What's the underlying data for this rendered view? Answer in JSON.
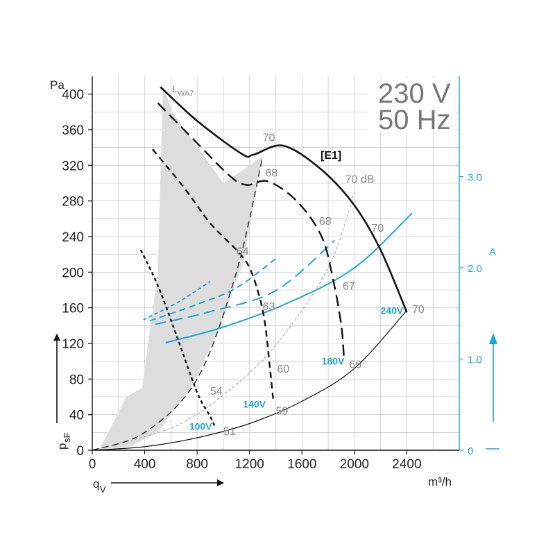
{
  "chart_data": {
    "type": "line",
    "supply_voltage": "230 V",
    "supply_frequency": "50 Hz",
    "model_tag": "[E1]",
    "xlabel": "q",
    "xlabel_sub": "V",
    "xunit": "m³/h",
    "ylabel": "p",
    "ylabel_sub": "sF",
    "yunit": "Pa",
    "y2unit": "A",
    "sound_label": "L",
    "sound_label_sub": "WA7",
    "xlim": [
      0,
      2800
    ],
    "ylim": [
      0,
      420
    ],
    "y2lim": [
      0,
      4.1
    ],
    "x_ticks": [
      "0",
      "400",
      "800",
      "1200",
      "1600",
      "2000",
      "2400"
    ],
    "y_ticks": [
      "0",
      "40",
      "80",
      "120",
      "160",
      "200",
      "240",
      "280",
      "320",
      "360",
      "400"
    ],
    "y2_ticks": [
      "0",
      "1.0",
      "2.0",
      "3.0"
    ],
    "colors": {
      "pressure": "#111111",
      "current": "#1aa7d8",
      "sound": "#888888",
      "shade": "#dddddd",
      "grid": "#bbbbbb"
    },
    "pressure_curves": [
      {
        "name": "240V",
        "dash": "solid",
        "points": [
          [
            520,
            408
          ],
          [
            800,
            370
          ],
          [
            1140,
            333
          ],
          [
            1230,
            332
          ],
          [
            1460,
            342
          ],
          [
            1750,
            315
          ],
          [
            2000,
            275
          ],
          [
            2200,
            225
          ],
          [
            2400,
            155
          ]
        ]
      },
      {
        "name": "180V",
        "dash": "long",
        "points": [
          [
            500,
            390
          ],
          [
            800,
            345
          ],
          [
            1050,
            308
          ],
          [
            1180,
            298
          ],
          [
            1340,
            302
          ],
          [
            1560,
            280
          ],
          [
            1750,
            240
          ],
          [
            1840,
            190
          ],
          [
            1900,
            140
          ],
          [
            1920,
            105
          ]
        ]
      },
      {
        "name": "140V",
        "dash": "medium",
        "points": [
          [
            460,
            338
          ],
          [
            700,
            295
          ],
          [
            900,
            255
          ],
          [
            1100,
            225
          ],
          [
            1200,
            205
          ],
          [
            1280,
            170
          ],
          [
            1320,
            140
          ],
          [
            1350,
            100
          ],
          [
            1380,
            58
          ]
        ]
      },
      {
        "name": "100V",
        "dash": "short",
        "points": [
          [
            370,
            225
          ],
          [
            500,
            185
          ],
          [
            640,
            130
          ],
          [
            800,
            65
          ],
          [
            900,
            38
          ],
          [
            940,
            25
          ]
        ]
      }
    ],
    "system_curves": [
      {
        "dash": "solid",
        "points": [
          [
            0,
            0
          ],
          [
            400,
            4
          ],
          [
            800,
            14
          ],
          [
            1200,
            30
          ],
          [
            1600,
            55
          ],
          [
            2000,
            92
          ],
          [
            2400,
            157
          ]
        ]
      },
      {
        "dash": "fine",
        "points": [
          [
            0,
            0
          ],
          [
            600,
            25
          ],
          [
            1000,
            62
          ],
          [
            1400,
            118
          ],
          [
            1800,
            205
          ],
          [
            2000,
            290
          ]
        ]
      },
      {
        "dash": "medium",
        "points": [
          [
            0,
            0
          ],
          [
            400,
            20
          ],
          [
            800,
            80
          ],
          [
            1100,
            200
          ],
          [
            1300,
            330
          ]
        ]
      }
    ],
    "current_curves": [
      {
        "name": "240V",
        "dash": "solid",
        "points": [
          [
            560,
            1.18
          ],
          [
            1000,
            1.35
          ],
          [
            1500,
            1.62
          ],
          [
            2000,
            2.0
          ],
          [
            2440,
            2.6
          ]
        ]
      },
      {
        "name": "180V",
        "dash": "long",
        "points": [
          [
            480,
            1.38
          ],
          [
            900,
            1.52
          ],
          [
            1400,
            1.75
          ],
          [
            1850,
            2.3
          ]
        ]
      },
      {
        "name": "140V",
        "dash": "medium",
        "points": [
          [
            440,
            1.42
          ],
          [
            800,
            1.6
          ],
          [
            1100,
            1.78
          ],
          [
            1400,
            2.1
          ]
        ]
      },
      {
        "name": "100V",
        "dash": "short",
        "points": [
          [
            390,
            1.43
          ],
          [
            650,
            1.62
          ],
          [
            900,
            1.85
          ]
        ]
      }
    ],
    "sound_region": [
      [
        50,
        0
      ],
      [
        140,
        25
      ],
      [
        260,
        60
      ],
      [
        380,
        70
      ],
      [
        500,
        200
      ],
      [
        540,
        410
      ],
      [
        610,
        380
      ],
      [
        1000,
        300
      ],
      [
        1300,
        330
      ],
      [
        1150,
        210
      ],
      [
        950,
        130
      ],
      [
        750,
        70
      ],
      [
        500,
        20
      ],
      [
        300,
        5
      ],
      [
        80,
        0
      ]
    ],
    "voltage_labels": [
      {
        "text": "240V",
        "at": [
          2200,
          157
        ]
      },
      {
        "text": "180V",
        "at": [
          1750,
          100
        ]
      },
      {
        "text": "140V",
        "at": [
          1150,
          52
        ]
      },
      {
        "text": "100V",
        "at": [
          740,
          27
        ]
      }
    ],
    "sound_values": [
      {
        "text": "70",
        "at": [
          1300,
          352
        ]
      },
      {
        "text": "68",
        "at": [
          1320,
          312
        ]
      },
      {
        "text": "64",
        "at": [
          1100,
          224
        ]
      },
      {
        "text": "54",
        "at": [
          900,
          67
        ]
      },
      {
        "text": "51",
        "at": [
          1000,
          22
        ]
      },
      {
        "text": "70 dB",
        "at": [
          1930,
          305
        ]
      },
      {
        "text": "68",
        "at": [
          1730,
          258
        ]
      },
      {
        "text": "63",
        "at": [
          1300,
          162
        ]
      },
      {
        "text": "60",
        "at": [
          1410,
          92
        ]
      },
      {
        "text": "59",
        "at": [
          1400,
          45
        ]
      },
      {
        "text": "70",
        "at": [
          2130,
          250
        ]
      },
      {
        "text": "67",
        "at": [
          1910,
          185
        ]
      },
      {
        "text": "66",
        "at": [
          1960,
          97
        ]
      },
      {
        "text": "70",
        "at": [
          2440,
          159
        ]
      }
    ]
  }
}
